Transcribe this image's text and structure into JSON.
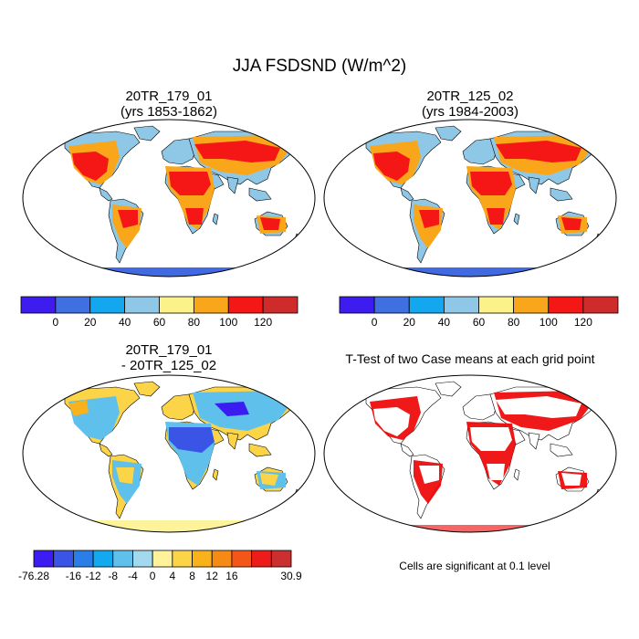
{
  "main_title": "JJA FSDSND (W/m^2)",
  "panels": [
    {
      "id": "case1",
      "title_line1": "20TR_179_01",
      "title_line2": "(yrs 1853-1862)"
    },
    {
      "id": "case2",
      "title_line1": "20TR_125_02",
      "title_line2": "(yrs 1984-2003)"
    },
    {
      "id": "diff",
      "title_line1": "20TR_179_01",
      "title_line2": "- 20TR_125_02"
    },
    {
      "id": "ttest",
      "title_line1": "T-Test of two Case means at each grid point",
      "title_line2": ""
    }
  ],
  "colorbar_case": {
    "colors": [
      "#3d1cf0",
      "#3f6fe0",
      "#12a7ee",
      "#8fc8e6",
      "#fbf28a",
      "#f9a61a",
      "#f51616",
      "#d02b2b"
    ],
    "labels": [
      "0",
      "20",
      "40",
      "60",
      "80",
      "100",
      "120"
    ]
  },
  "colorbar_diff": {
    "colors": [
      "#3b1df2",
      "#3a55e6",
      "#2b7de8",
      "#12a9ef",
      "#5fc0ec",
      "#a2d9ee",
      "#fff29a",
      "#fbd447",
      "#f9b11c",
      "#f58a15",
      "#f4561a",
      "#ee1b1b",
      "#cc2f2f"
    ],
    "labels": [
      "-76.28",
      "-16",
      "-12",
      "-8",
      "-4",
      "0",
      "4",
      "8",
      "12",
      "16",
      "30.9"
    ]
  },
  "significance_note": "Cells are significant at 0.1 level",
  "colors": {
    "ocean": "#ffffff",
    "antarctica_case": "#4169e1",
    "antarctica_diff": "#fdf39a",
    "significant": "#ee0000"
  }
}
